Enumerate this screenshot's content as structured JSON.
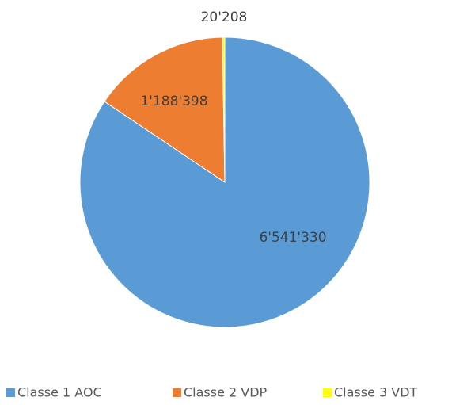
{
  "chart_data": {
    "type": "pie",
    "categories": [
      "Classe 1 AOC",
      "Classe 2 VDP",
      "Classe 3 VDT"
    ],
    "values": [
      6541330,
      1188398,
      20208
    ],
    "value_labels": [
      "6'541'330",
      "1'188'398",
      "20'208"
    ],
    "colors": [
      "#5b9bd5",
      "#ed7d31",
      "#ffff00"
    ],
    "legend": "bottom"
  }
}
